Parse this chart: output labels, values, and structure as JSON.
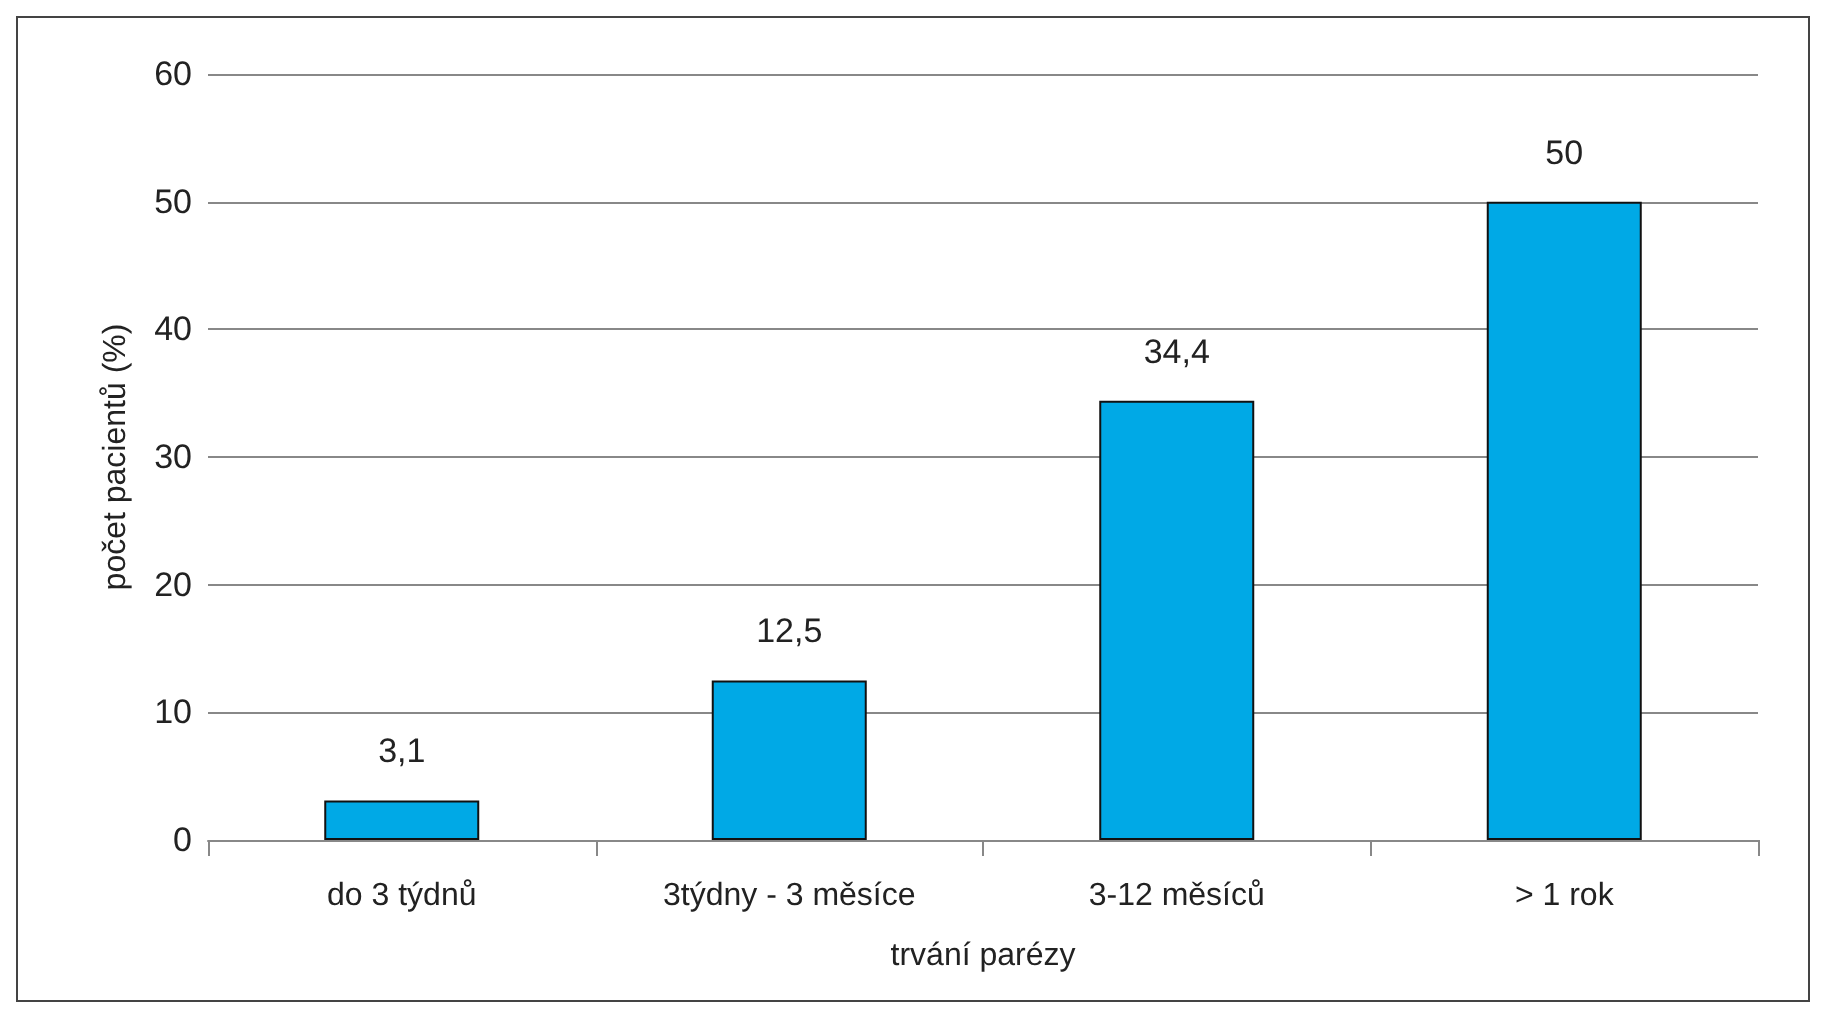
{
  "chart_data": {
    "type": "bar",
    "xlabel": "trvání parézy",
    "ylabel": "počet pacientů (%)",
    "categories": [
      "do 3 týdnů",
      "3týdny - 3 měsíce",
      "3-12 měsíců",
      "> 1 rok"
    ],
    "values": [
      3.1,
      12.5,
      34.4,
      50
    ],
    "value_labels": [
      "3,1",
      "12,5",
      "34,4",
      "50"
    ],
    "color": "#00a9e6",
    "ylim": [
      0,
      60
    ],
    "yticks": [
      0,
      10,
      20,
      30,
      40,
      50,
      60
    ],
    "grid": "y"
  }
}
